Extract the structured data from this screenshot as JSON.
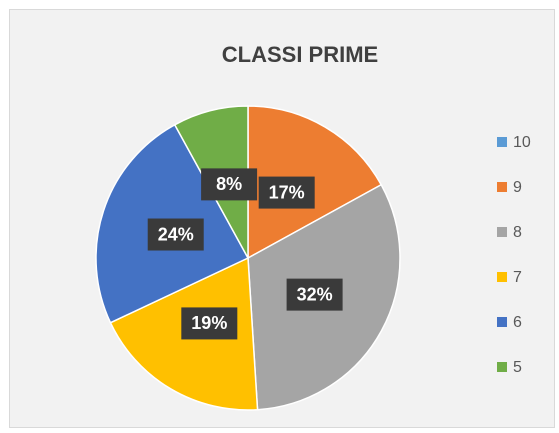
{
  "chart_data": {
    "type": "pie",
    "title": "CLASSI PRIME",
    "categories": [
      "10",
      "9",
      "8",
      "7",
      "6",
      "5"
    ],
    "values": [
      0,
      17,
      32,
      19,
      24,
      8
    ],
    "value_labels": [
      null,
      "17%",
      "32%",
      "19%",
      "24%",
      "8%"
    ],
    "colors": [
      "#5b9bd5",
      "#ed7d31",
      "#a5a5a5",
      "#ffc000",
      "#4472c4",
      "#70ad47"
    ],
    "legend": "right"
  }
}
